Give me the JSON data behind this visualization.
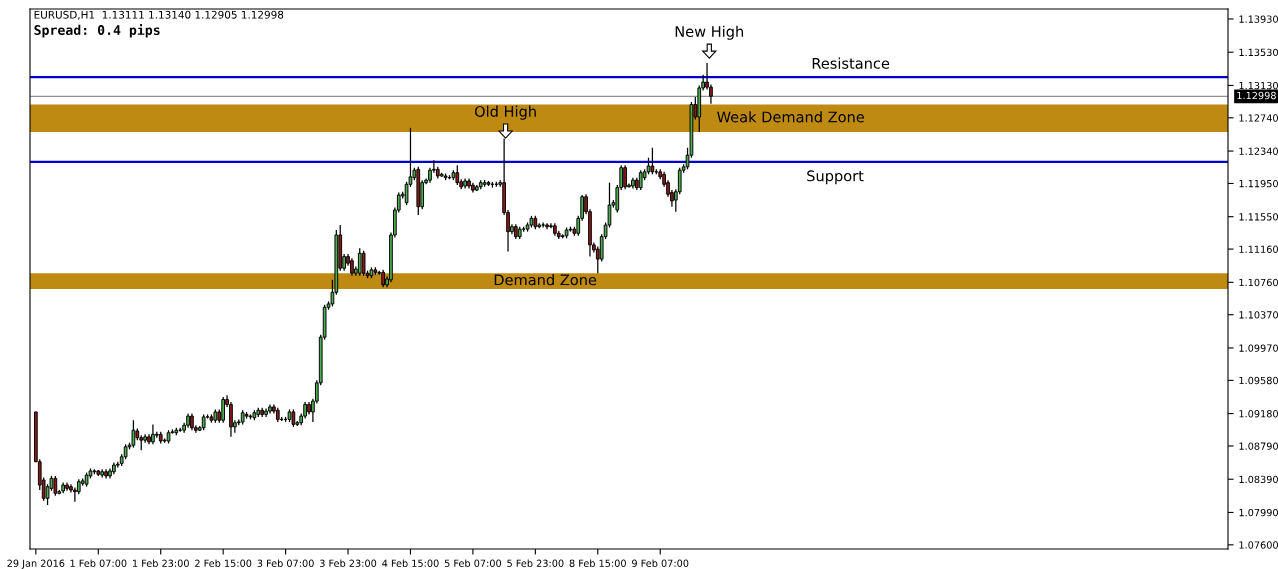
{
  "chart_data": {
    "type": "candlestick",
    "annotations": [
      "EURUSD,H1  1.13111 1.13140 1.12905 1.12998",
      "Spread: 0.4 pips",
      "Old High",
      "New High"
    ],
    "categories": [
      "29 Jan 2016",
      null,
      null,
      null,
      null,
      null,
      null,
      null,
      null,
      null,
      null,
      null,
      null,
      null,
      null,
      null,
      "1 Feb 07:00",
      null,
      null,
      null,
      null,
      null,
      null,
      null,
      null,
      null,
      null,
      null,
      null,
      null,
      null,
      null,
      "1 Feb 23:00",
      null,
      null,
      null,
      null,
      null,
      null,
      null,
      null,
      null,
      null,
      null,
      null,
      null,
      null,
      null,
      "2 Feb 15:00",
      null,
      null,
      null,
      null,
      null,
      null,
      null,
      null,
      null,
      null,
      null,
      null,
      null,
      null,
      null,
      "3 Feb 07:00",
      null,
      null,
      null,
      null,
      null,
      null,
      null,
      null,
      null,
      null,
      null,
      null,
      null,
      null,
      null,
      "3 Feb 23:00",
      null,
      null,
      null,
      null,
      null,
      null,
      null,
      null,
      null,
      null,
      null,
      null,
      null,
      null,
      null,
      "4 Feb 15:00",
      null,
      null,
      null,
      null,
      null,
      null,
      null,
      null,
      null,
      null,
      null,
      null,
      null,
      null,
      null,
      "5 Feb 07:00",
      null,
      null,
      null,
      null,
      null,
      null,
      null,
      null,
      null,
      null,
      null,
      null,
      null,
      null,
      null,
      "5 Feb 23:00",
      null,
      null,
      null,
      null,
      null,
      null,
      null,
      null,
      null,
      null,
      null,
      null,
      null,
      null,
      null,
      "8 Feb 15:00",
      null,
      null,
      null,
      null,
      null,
      null,
      null,
      null,
      null,
      null,
      null,
      null,
      null,
      null,
      null,
      "9 Feb 07:00",
      null,
      null,
      null,
      null,
      null,
      null,
      null,
      null,
      null,
      null,
      null,
      null,
      null,
      null,
      null,
      null,
      null,
      null,
      null,
      null,
      null,
      null,
      null,
      null,
      null,
      null,
      null,
      null,
      null,
      null,
      null,
      null,
      null,
      null,
      null,
      null,
      null,
      null,
      null,
      null,
      null,
      null,
      null,
      null,
      null,
      null,
      null,
      null,
      null,
      null,
      null,
      null,
      null,
      null,
      null,
      null,
      null,
      null,
      null,
      null,
      null,
      null,
      null,
      null,
      null,
      null,
      null,
      null,
      null,
      null,
      null,
      null,
      null,
      null,
      null,
      null,
      null,
      null,
      null,
      null,
      null,
      null,
      null,
      null,
      null,
      null,
      null,
      null,
      null,
      null,
      null,
      null,
      null,
      null,
      null,
      null,
      null,
      null,
      null,
      null,
      null,
      null,
      null,
      null,
      null,
      null,
      null,
      null,
      null,
      null,
      null,
      null,
      null,
      null,
      null,
      null,
      null,
      null,
      null,
      null,
      null,
      null,
      null,
      null,
      null,
      null,
      null,
      null,
      null,
      null,
      null,
      null,
      null,
      null,
      null,
      null,
      null,
      null,
      null,
      null,
      null,
      null,
      null,
      null,
      null
    ],
    "ohlc": [
      [
        1.092,
        1.092,
        1.086,
        1.086
      ],
      [
        1.086,
        1.0863,
        1.0826,
        1.0832
      ],
      [
        1.0838,
        1.0841,
        1.0813,
        1.0816
      ],
      [
        1.0816,
        1.0833,
        1.0808,
        1.083
      ],
      [
        1.0828,
        1.0843,
        1.0825,
        1.084
      ],
      [
        1.084,
        1.0843,
        1.0819,
        1.0822
      ],
      [
        1.0822,
        1.0826,
        1.0821,
        1.0824
      ],
      [
        1.0825,
        1.0835,
        1.0822,
        1.0832
      ],
      [
        1.0832,
        1.0835,
        1.0825,
        1.0828
      ],
      [
        1.083,
        1.0833,
        1.0823,
        1.0826
      ],
      [
        1.0826,
        1.0829,
        1.0812,
        1.0824
      ],
      [
        1.0824,
        1.0839,
        1.0821,
        1.0836
      ],
      [
        1.0834,
        1.084,
        1.0831,
        1.0837
      ],
      [
        1.0833,
        1.0847,
        1.083,
        1.0844
      ],
      [
        1.0843,
        1.0852,
        1.084,
        1.0849
      ],
      [
        1.0848,
        1.0851,
        1.0845,
        1.0849
      ],
      [
        1.0849,
        1.085,
        1.0843,
        1.0845
      ],
      [
        1.0844,
        1.0851,
        1.0841,
        1.0848
      ],
      [
        1.0848,
        1.0851,
        1.084,
        1.0843
      ],
      [
        1.0843,
        1.0852,
        1.084,
        1.0849
      ],
      [
        1.0848,
        1.0859,
        1.0845,
        1.0856
      ],
      [
        1.0856,
        1.086,
        1.0853,
        1.0857
      ],
      [
        1.0858,
        1.0869,
        1.0855,
        1.0866
      ],
      [
        1.0866,
        1.0881,
        1.0863,
        1.0878
      ],
      [
        1.0878,
        1.0883,
        1.0875,
        1.088
      ],
      [
        1.088,
        1.091,
        1.0877,
        1.0898
      ],
      [
        1.0897,
        1.09,
        1.0886,
        1.0889
      ],
      [
        1.0889,
        1.0892,
        1.0874,
        1.0886
      ],
      [
        1.0886,
        1.0893,
        1.0883,
        1.089
      ],
      [
        1.089,
        1.0893,
        1.0881,
        1.0884
      ],
      [
        1.0884,
        1.0905,
        1.0881,
        1.0893
      ],
      [
        1.0893,
        1.0896,
        1.0889,
        1.0892
      ],
      [
        1.0893,
        1.0896,
        1.0882,
        1.0885
      ],
      [
        1.0885,
        1.0888,
        1.0883,
        1.0886
      ],
      [
        1.0885,
        1.0898,
        1.0882,
        1.0895
      ],
      [
        1.0895,
        1.0899,
        1.0894,
        1.0896
      ],
      [
        1.0895,
        1.0901,
        1.0892,
        1.0898
      ],
      [
        1.0898,
        1.0901,
        1.0896,
        1.0898
      ],
      [
        1.0898,
        1.0907,
        1.0895,
        1.0904
      ],
      [
        1.0904,
        1.0918,
        1.0901,
        1.0915
      ],
      [
        1.0915,
        1.0918,
        1.0898,
        1.0901
      ],
      [
        1.0901,
        1.0904,
        1.0895,
        1.0898
      ],
      [
        1.0898,
        1.0903,
        1.0897,
        1.0901
      ],
      [
        1.0901,
        1.0917,
        1.0898,
        1.0914
      ],
      [
        1.0914,
        1.0917,
        1.0912,
        1.0914
      ],
      [
        1.0914,
        1.0917,
        1.0907,
        1.091
      ],
      [
        1.091,
        1.0923,
        1.0907,
        1.092
      ],
      [
        1.092,
        1.0923,
        1.0907,
        1.091
      ],
      [
        1.091,
        1.0938,
        1.0907,
        1.0935
      ],
      [
        1.0935,
        1.094,
        1.0926,
        1.0929
      ],
      [
        1.0929,
        1.0932,
        1.089,
        1.0902
      ],
      [
        1.0902,
        1.091,
        1.0895,
        1.0907
      ],
      [
        1.0907,
        1.0911,
        1.0904,
        1.0908
      ],
      [
        1.0908,
        1.0922,
        1.0905,
        1.0919
      ],
      [
        1.0917,
        1.092,
        1.0912,
        1.0915
      ],
      [
        1.0915,
        1.0917,
        1.0911,
        1.0914
      ],
      [
        1.0913,
        1.0922,
        1.091,
        1.0919
      ],
      [
        1.0917,
        1.0925,
        1.0914,
        1.0922
      ],
      [
        1.0922,
        1.0925,
        1.0914,
        1.0917
      ],
      [
        1.0917,
        1.0924,
        1.0914,
        1.0921
      ],
      [
        1.0921,
        1.0929,
        1.0918,
        1.0926
      ],
      [
        1.0926,
        1.0929,
        1.0918,
        1.0921
      ],
      [
        1.0922,
        1.0925,
        1.0908,
        1.0911
      ],
      [
        1.0911,
        1.0914,
        1.0909,
        1.0911
      ],
      [
        1.0911,
        1.0914,
        1.0908,
        1.0911
      ],
      [
        1.0911,
        1.0923,
        1.0908,
        1.092
      ],
      [
        1.092,
        1.0923,
        1.0902,
        1.0905
      ],
      [
        1.0905,
        1.0909,
        1.0903,
        1.0907
      ],
      [
        1.0907,
        1.0918,
        1.0904,
        1.0915
      ],
      [
        1.0915,
        1.0932,
        1.0912,
        1.0929
      ],
      [
        1.0929,
        1.0932,
        1.0917,
        1.092
      ],
      [
        1.092,
        1.0936,
        1.0908,
        1.0933
      ],
      [
        1.0933,
        1.0958,
        1.093,
        1.0955
      ],
      [
        1.0955,
        1.1013,
        1.0952,
        1.101
      ],
      [
        1.101,
        1.1049,
        1.1007,
        1.1046
      ],
      [
        1.1046,
        1.1053,
        1.1043,
        1.105
      ],
      [
        1.105,
        1.1079,
        1.1047,
        1.1064
      ],
      [
        1.1064,
        1.1139,
        1.1061,
        1.1133
      ],
      [
        1.1133,
        1.1145,
        1.109,
        1.1093
      ],
      [
        1.1093,
        1.111,
        1.109,
        1.1107
      ],
      [
        1.1107,
        1.111,
        1.1096,
        1.1099
      ],
      [
        1.1102,
        1.1105,
        1.1084,
        1.1087
      ],
      [
        1.1087,
        1.1095,
        1.1084,
        1.1092
      ],
      [
        1.1087,
        1.1117,
        1.1084,
        1.1111
      ],
      [
        1.1111,
        1.1114,
        1.1084,
        1.1087
      ],
      [
        1.1087,
        1.109,
        1.1081,
        1.1084
      ],
      [
        1.1084,
        1.1094,
        1.1081,
        1.1091
      ],
      [
        1.1091,
        1.1094,
        1.1085,
        1.1088
      ],
      [
        1.1088,
        1.109,
        1.1085,
        1.1087
      ],
      [
        1.1088,
        1.1091,
        1.107,
        1.1073
      ],
      [
        1.1073,
        1.1083,
        1.107,
        1.108
      ],
      [
        1.1079,
        1.1136,
        1.1076,
        1.1133
      ],
      [
        1.1133,
        1.1166,
        1.113,
        1.1163
      ],
      [
        1.1163,
        1.1184,
        1.116,
        1.1181
      ],
      [
        1.118,
        1.1185,
        1.1177,
        1.1182
      ],
      [
        1.1172,
        1.1197,
        1.1169,
        1.1194
      ],
      [
        1.1194,
        1.1262,
        1.1191,
        1.1203
      ],
      [
        1.1202,
        1.1214,
        1.1199,
        1.1211
      ],
      [
        1.1212,
        1.1215,
        1.1157,
        1.1167
      ],
      [
        1.1167,
        1.1199,
        1.1164,
        1.1196
      ],
      [
        1.1196,
        1.1201,
        1.1194,
        1.1199
      ],
      [
        1.1199,
        1.1214,
        1.1196,
        1.1211
      ],
      [
        1.1211,
        1.1223,
        1.1208,
        1.1212
      ],
      [
        1.1212,
        1.1215,
        1.1201,
        1.1204
      ],
      [
        1.1204,
        1.1208,
        1.1203,
        1.1206
      ],
      [
        1.1204,
        1.1207,
        1.1199,
        1.1202
      ],
      [
        1.1202,
        1.1205,
        1.12,
        1.1202
      ],
      [
        1.1202,
        1.1211,
        1.1199,
        1.1208
      ],
      [
        1.1208,
        1.1217,
        1.1193,
        1.1196
      ],
      [
        1.1197,
        1.12,
        1.1188,
        1.1191
      ],
      [
        1.1192,
        1.1201,
        1.1189,
        1.1198
      ],
      [
        1.1198,
        1.1201,
        1.1189,
        1.1192
      ],
      [
        1.1193,
        1.1196,
        1.1184,
        1.1187
      ],
      [
        1.1187,
        1.1193,
        1.1186,
        1.1191
      ],
      [
        1.1191,
        1.1199,
        1.1188,
        1.1196
      ],
      [
        1.1194,
        1.1199,
        1.1191,
        1.1196
      ],
      [
        1.1196,
        1.1198,
        1.1192,
        1.1194
      ],
      [
        1.1194,
        1.1197,
        1.119,
        1.1194
      ],
      [
        1.1194,
        1.1197,
        1.1191,
        1.1194
      ],
      [
        1.1194,
        1.1199,
        1.1191,
        1.1196
      ],
      [
        1.1196,
        1.1249,
        1.1157,
        1.116
      ],
      [
        1.116,
        1.1163,
        1.1113,
        1.1137
      ],
      [
        1.1137,
        1.1146,
        1.1134,
        1.1143
      ],
      [
        1.1143,
        1.1146,
        1.1128,
        1.1131
      ],
      [
        1.1131,
        1.1143,
        1.1128,
        1.114
      ],
      [
        1.114,
        1.1143,
        1.1137,
        1.114
      ],
      [
        1.114,
        1.1148,
        1.1137,
        1.1145
      ],
      [
        1.1145,
        1.1156,
        1.1142,
        1.1153
      ],
      [
        1.1153,
        1.1156,
        1.114,
        1.1143
      ],
      [
        1.1143,
        1.1147,
        1.1141,
        1.1145
      ],
      [
        1.1145,
        1.1148,
        1.1142,
        1.1145
      ],
      [
        1.1145,
        1.1147,
        1.114,
        1.1143
      ],
      [
        1.1143,
        1.1147,
        1.1141,
        1.1144
      ],
      [
        1.1144,
        1.1147,
        1.1132,
        1.1135
      ],
      [
        1.1135,
        1.1138,
        1.1128,
        1.1131
      ],
      [
        1.1131,
        1.1134,
        1.1129,
        1.1132
      ],
      [
        1.1132,
        1.1142,
        1.1129,
        1.1139
      ],
      [
        1.1139,
        1.1143,
        1.1137,
        1.114
      ],
      [
        1.114,
        1.1143,
        1.1132,
        1.1135
      ],
      [
        1.1135,
        1.1156,
        1.1132,
        1.1153
      ],
      [
        1.1153,
        1.1181,
        1.115,
        1.1179
      ],
      [
        1.1179,
        1.1182,
        1.1158,
        1.1161
      ],
      [
        1.1161,
        1.1164,
        1.1107,
        1.1121
      ],
      [
        1.1121,
        1.1124,
        1.1112,
        1.1115
      ],
      [
        1.1116,
        1.1119,
        1.1087,
        1.1104
      ],
      [
        1.1104,
        1.1134,
        1.1101,
        1.1131
      ],
      [
        1.1131,
        1.1148,
        1.1128,
        1.1145
      ],
      [
        1.1145,
        1.1196,
        1.1142,
        1.1169
      ],
      [
        1.1169,
        1.1175,
        1.1166,
        1.1172
      ],
      [
        1.1163,
        1.1193,
        1.116,
        1.119
      ],
      [
        1.119,
        1.1217,
        1.1187,
        1.1214
      ],
      [
        1.1214,
        1.1217,
        1.1188,
        1.1191
      ],
      [
        1.1191,
        1.1195,
        1.119,
        1.1193
      ],
      [
        1.1192,
        1.1202,
        1.1189,
        1.1199
      ],
      [
        1.1199,
        1.1202,
        1.1187,
        1.119
      ],
      [
        1.119,
        1.1211,
        1.1187,
        1.1208
      ],
      [
        1.1202,
        1.1212,
        1.1199,
        1.1209
      ],
      [
        1.1209,
        1.1226,
        1.1206,
        1.1216
      ],
      [
        1.1216,
        1.1238,
        1.1206,
        1.1209
      ],
      [
        1.1209,
        1.1212,
        1.1206,
        1.1209
      ],
      [
        1.1209,
        1.1212,
        1.12,
        1.1203
      ],
      [
        1.1206,
        1.1209,
        1.1191,
        1.1194
      ],
      [
        1.1196,
        1.1199,
        1.1179,
        1.1182
      ],
      [
        1.1184,
        1.1187,
        1.1167,
        1.1174
      ],
      [
        1.1175,
        1.1188,
        1.1161,
        1.1185
      ],
      [
        1.1185,
        1.1214,
        1.1182,
        1.1211
      ],
      [
        1.1211,
        1.1218,
        1.1208,
        1.1215
      ],
      [
        1.1215,
        1.1238,
        1.1212,
        1.1229
      ],
      [
        1.1229,
        1.1293,
        1.1226,
        1.129
      ],
      [
        1.129,
        1.1299,
        1.1272,
        1.1275
      ],
      [
        1.1275,
        1.1313,
        1.1257,
        1.131
      ],
      [
        1.131,
        1.1326,
        1.1307,
        1.1317
      ],
      [
        1.1317,
        1.134,
        1.1308,
        1.1311
      ],
      [
        1.1311,
        1.1314,
        1.1291,
        1.13
      ],
      null,
      null,
      null,
      null,
      null,
      null,
      null,
      null,
      null,
      null,
      null,
      null,
      null,
      null,
      null,
      null,
      null,
      null,
      null,
      null,
      null,
      null,
      null,
      null,
      null,
      null,
      null,
      null,
      null,
      null,
      null,
      null,
      null,
      null,
      null,
      null,
      null,
      null,
      null,
      null,
      null,
      null,
      null,
      null,
      null,
      null,
      null,
      null,
      null,
      null,
      null,
      null,
      null,
      null,
      null,
      null,
      null,
      null,
      null,
      null,
      null,
      null,
      null,
      null,
      null,
      null,
      null,
      null,
      null,
      null,
      null,
      null,
      null,
      null,
      null,
      null,
      null,
      null,
      null,
      null,
      null,
      null,
      null,
      null,
      null,
      null,
      null,
      null,
      null,
      null,
      null,
      null,
      null,
      null,
      null,
      null,
      null,
      null,
      null,
      null,
      null,
      null,
      null,
      null,
      null,
      null,
      null,
      null,
      null,
      null,
      null,
      null,
      null,
      null,
      null,
      null,
      null,
      null,
      null,
      null,
      null,
      null,
      null,
      null,
      null,
      null,
      null,
      null,
      null,
      null,
      null,
      null
    ],
    "ylim": [
      1.0755,
      1.1405
    ],
    "yticks": [
      {
        "value": 1.1393,
        "label": "1.13930"
      },
      {
        "value": 1.1353,
        "label": "1.13530"
      },
      {
        "value": 1.1313,
        "label": "1.13130"
      },
      {
        "value": 1.1274,
        "label": "1.12740"
      },
      {
        "value": 1.1234,
        "label": "1.12340"
      },
      {
        "value": 1.1195,
        "label": "1.11950"
      },
      {
        "value": 1.1155,
        "label": "1.11550"
      },
      {
        "value": 1.1116,
        "label": "1.11160"
      },
      {
        "value": 1.1076,
        "label": "1.10760"
      },
      {
        "value": 1.1037,
        "label": "1.10370"
      },
      {
        "value": 1.0997,
        "label": "1.09970"
      },
      {
        "value": 1.0958,
        "label": "1.09580"
      },
      {
        "value": 1.0918,
        "label": "1.09180"
      },
      {
        "value": 1.0879,
        "label": "1.08790"
      },
      {
        "value": 1.0839,
        "label": "1.08390"
      },
      {
        "value": 1.0799,
        "label": "1.07990"
      },
      {
        "value": 1.076,
        "label": "1.07600"
      }
    ],
    "ref_lines": [
      {
        "axis": "y",
        "value": 1.1323,
        "label": "Resistance",
        "color": "#0000cc"
      },
      {
        "axis": "y",
        "value": 1.1221,
        "label": "Support",
        "color": "#0000cc"
      },
      {
        "axis": "y",
        "value": 1.12998,
        "label": "1.12998",
        "color": "#909090"
      }
    ],
    "bands": [
      {
        "axis": "y",
        "from": 1.1068,
        "to": 1.1087,
        "label": "Demand Zone",
        "color": "#bf8a12"
      },
      {
        "axis": "y",
        "from": 1.1257,
        "to": 1.129,
        "label": "Weak Demand Zone",
        "color": "#bf8a12"
      }
    ],
    "grid": false,
    "legend": false
  }
}
